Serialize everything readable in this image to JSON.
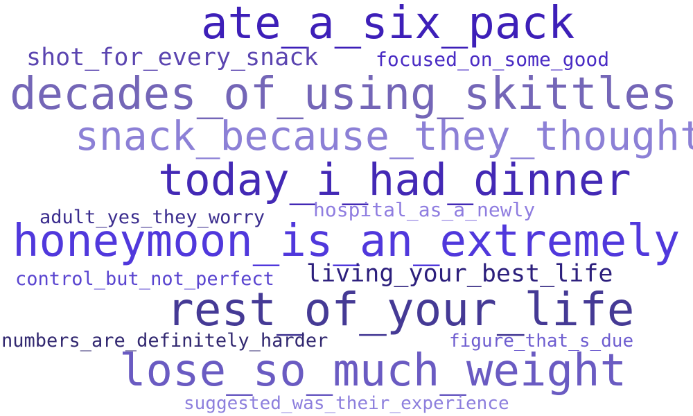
{
  "words": [
    {
      "text": "ate_a_six_pack",
      "color": "#3d1fb8"
    },
    {
      "text": "shot_for_every_snack",
      "color": "#5b45b0"
    },
    {
      "text": "focused_on_some_good",
      "color": "#4a2cc4"
    },
    {
      "text": "decades_of_using_skittles",
      "color": "#7466b7"
    },
    {
      "text": "snack_because_they_thought",
      "color": "#8c80d6"
    },
    {
      "text": "today_i_had_dinner",
      "color": "#4329b5"
    },
    {
      "text": "adult_yes_they_worry",
      "color": "#3b2d8e"
    },
    {
      "text": "hospital_as_a_newly",
      "color": "#8f7de0"
    },
    {
      "text": "honeymoon_is_an_extremely",
      "color": "#5038dc"
    },
    {
      "text": "control_but_not_perfect",
      "color": "#5a45d0"
    },
    {
      "text": "living_your_best_life",
      "color": "#2c1f7c"
    },
    {
      "text": "rest_of_your_life",
      "color": "#453a95"
    },
    {
      "text": "numbers_are_definitely_harder",
      "color": "#322870"
    },
    {
      "text": "figure_that_s_due",
      "color": "#6f5ed0"
    },
    {
      "text": "lose_so_much_weight",
      "color": "#6a5bc2"
    },
    {
      "text": "suggested_was_their_experience",
      "color": "#8d7fdd"
    }
  ]
}
